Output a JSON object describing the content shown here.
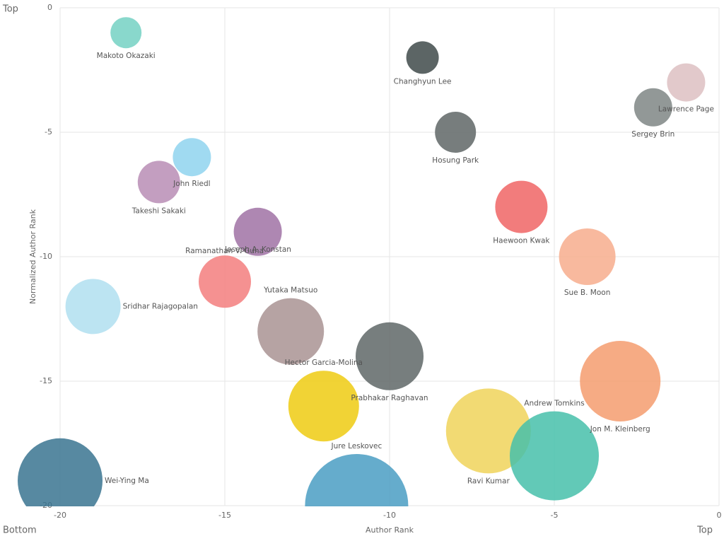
{
  "chart_data": {
    "type": "bubble",
    "x_label": "Author Rank",
    "y_label": "Normalized Author Rank",
    "corner_labels": {
      "top_left": "Top",
      "bottom_left": "Bottom",
      "bottom_right": "Top"
    },
    "xlim": [
      -20,
      0
    ],
    "ylim": [
      -20,
      0
    ],
    "xticks": [
      -20,
      -15,
      -10,
      -5,
      0
    ],
    "yticks": [
      0,
      -5,
      -10,
      -15,
      -20
    ],
    "grid": true,
    "points": [
      {
        "name": "Makoto Okazaki",
        "x": -18,
        "y": -1,
        "size": 22,
        "color": "#74d1c3"
      },
      {
        "name": "Changhyun Lee",
        "x": -9,
        "y": -2,
        "size": 23,
        "color": "#3f4a4a"
      },
      {
        "name": "Lawrence Page",
        "x": -1,
        "y": -3,
        "size": 27,
        "color": "#ddbfc2"
      },
      {
        "name": "Sergey Brin",
        "x": -2,
        "y": -4,
        "size": 27,
        "color": "#7f8685"
      },
      {
        "name": "Hosung Park",
        "x": -8,
        "y": -5,
        "size": 29,
        "color": "#5f6666"
      },
      {
        "name": "John Riedl",
        "x": -16,
        "y": -6,
        "size": 27,
        "color": "#8fd3ee"
      },
      {
        "name": "Takeshi Sakaki",
        "x": -17,
        "y": -7,
        "size": 30,
        "color": "#b88db5"
      },
      {
        "name": "Haewoon Kwak",
        "x": -6,
        "y": -8,
        "size": 37,
        "color": "#f06565"
      },
      {
        "name": "Ramanathan V. Guha",
        "x": -14,
        "y": -9,
        "size": 34,
        "color": "#a072a4"
      },
      {
        "name": "Sue B. Moon",
        "x": -4,
        "y": -10,
        "size": 40,
        "color": "#f7ad8d"
      },
      {
        "name": "Joseph A. Konstan",
        "x": -15,
        "y": -11,
        "size": 37,
        "color": "#f37e7e"
      },
      {
        "name": "Sridhar Rajagopalan",
        "x": -19,
        "y": -12,
        "size": 39,
        "color": "#b0dff0"
      },
      {
        "name": "Yutaka Matsuo",
        "x": -13,
        "y": -13,
        "size": 47,
        "color": "#a99393"
      },
      {
        "name": "Prabhakar Raghavan",
        "x": -10,
        "y": -14,
        "size": 48,
        "color": "#5f6767"
      },
      {
        "name": "Jon M. Kleinberg",
        "x": -3,
        "y": -15,
        "size": 57,
        "color": "#f59c6e"
      },
      {
        "name": "Hector Garcia-Molina",
        "x": -12,
        "y": -16,
        "size": 50,
        "color": "#eecb12"
      },
      {
        "name": "Ravi Kumar",
        "x": -7,
        "y": -17,
        "size": 60,
        "color": "#f0d35a"
      },
      {
        "name": "Andrew Tomkins",
        "x": -5,
        "y": -18,
        "size": 63,
        "color": "#46bfaa"
      },
      {
        "name": "Wei-Ying Ma",
        "x": -20,
        "y": -19,
        "size": 60,
        "color": "#3a7490"
      },
      {
        "name": "Jure Leskovec",
        "x": -11,
        "y": -20,
        "size": 73,
        "color": "#4a9ec3"
      }
    ]
  }
}
